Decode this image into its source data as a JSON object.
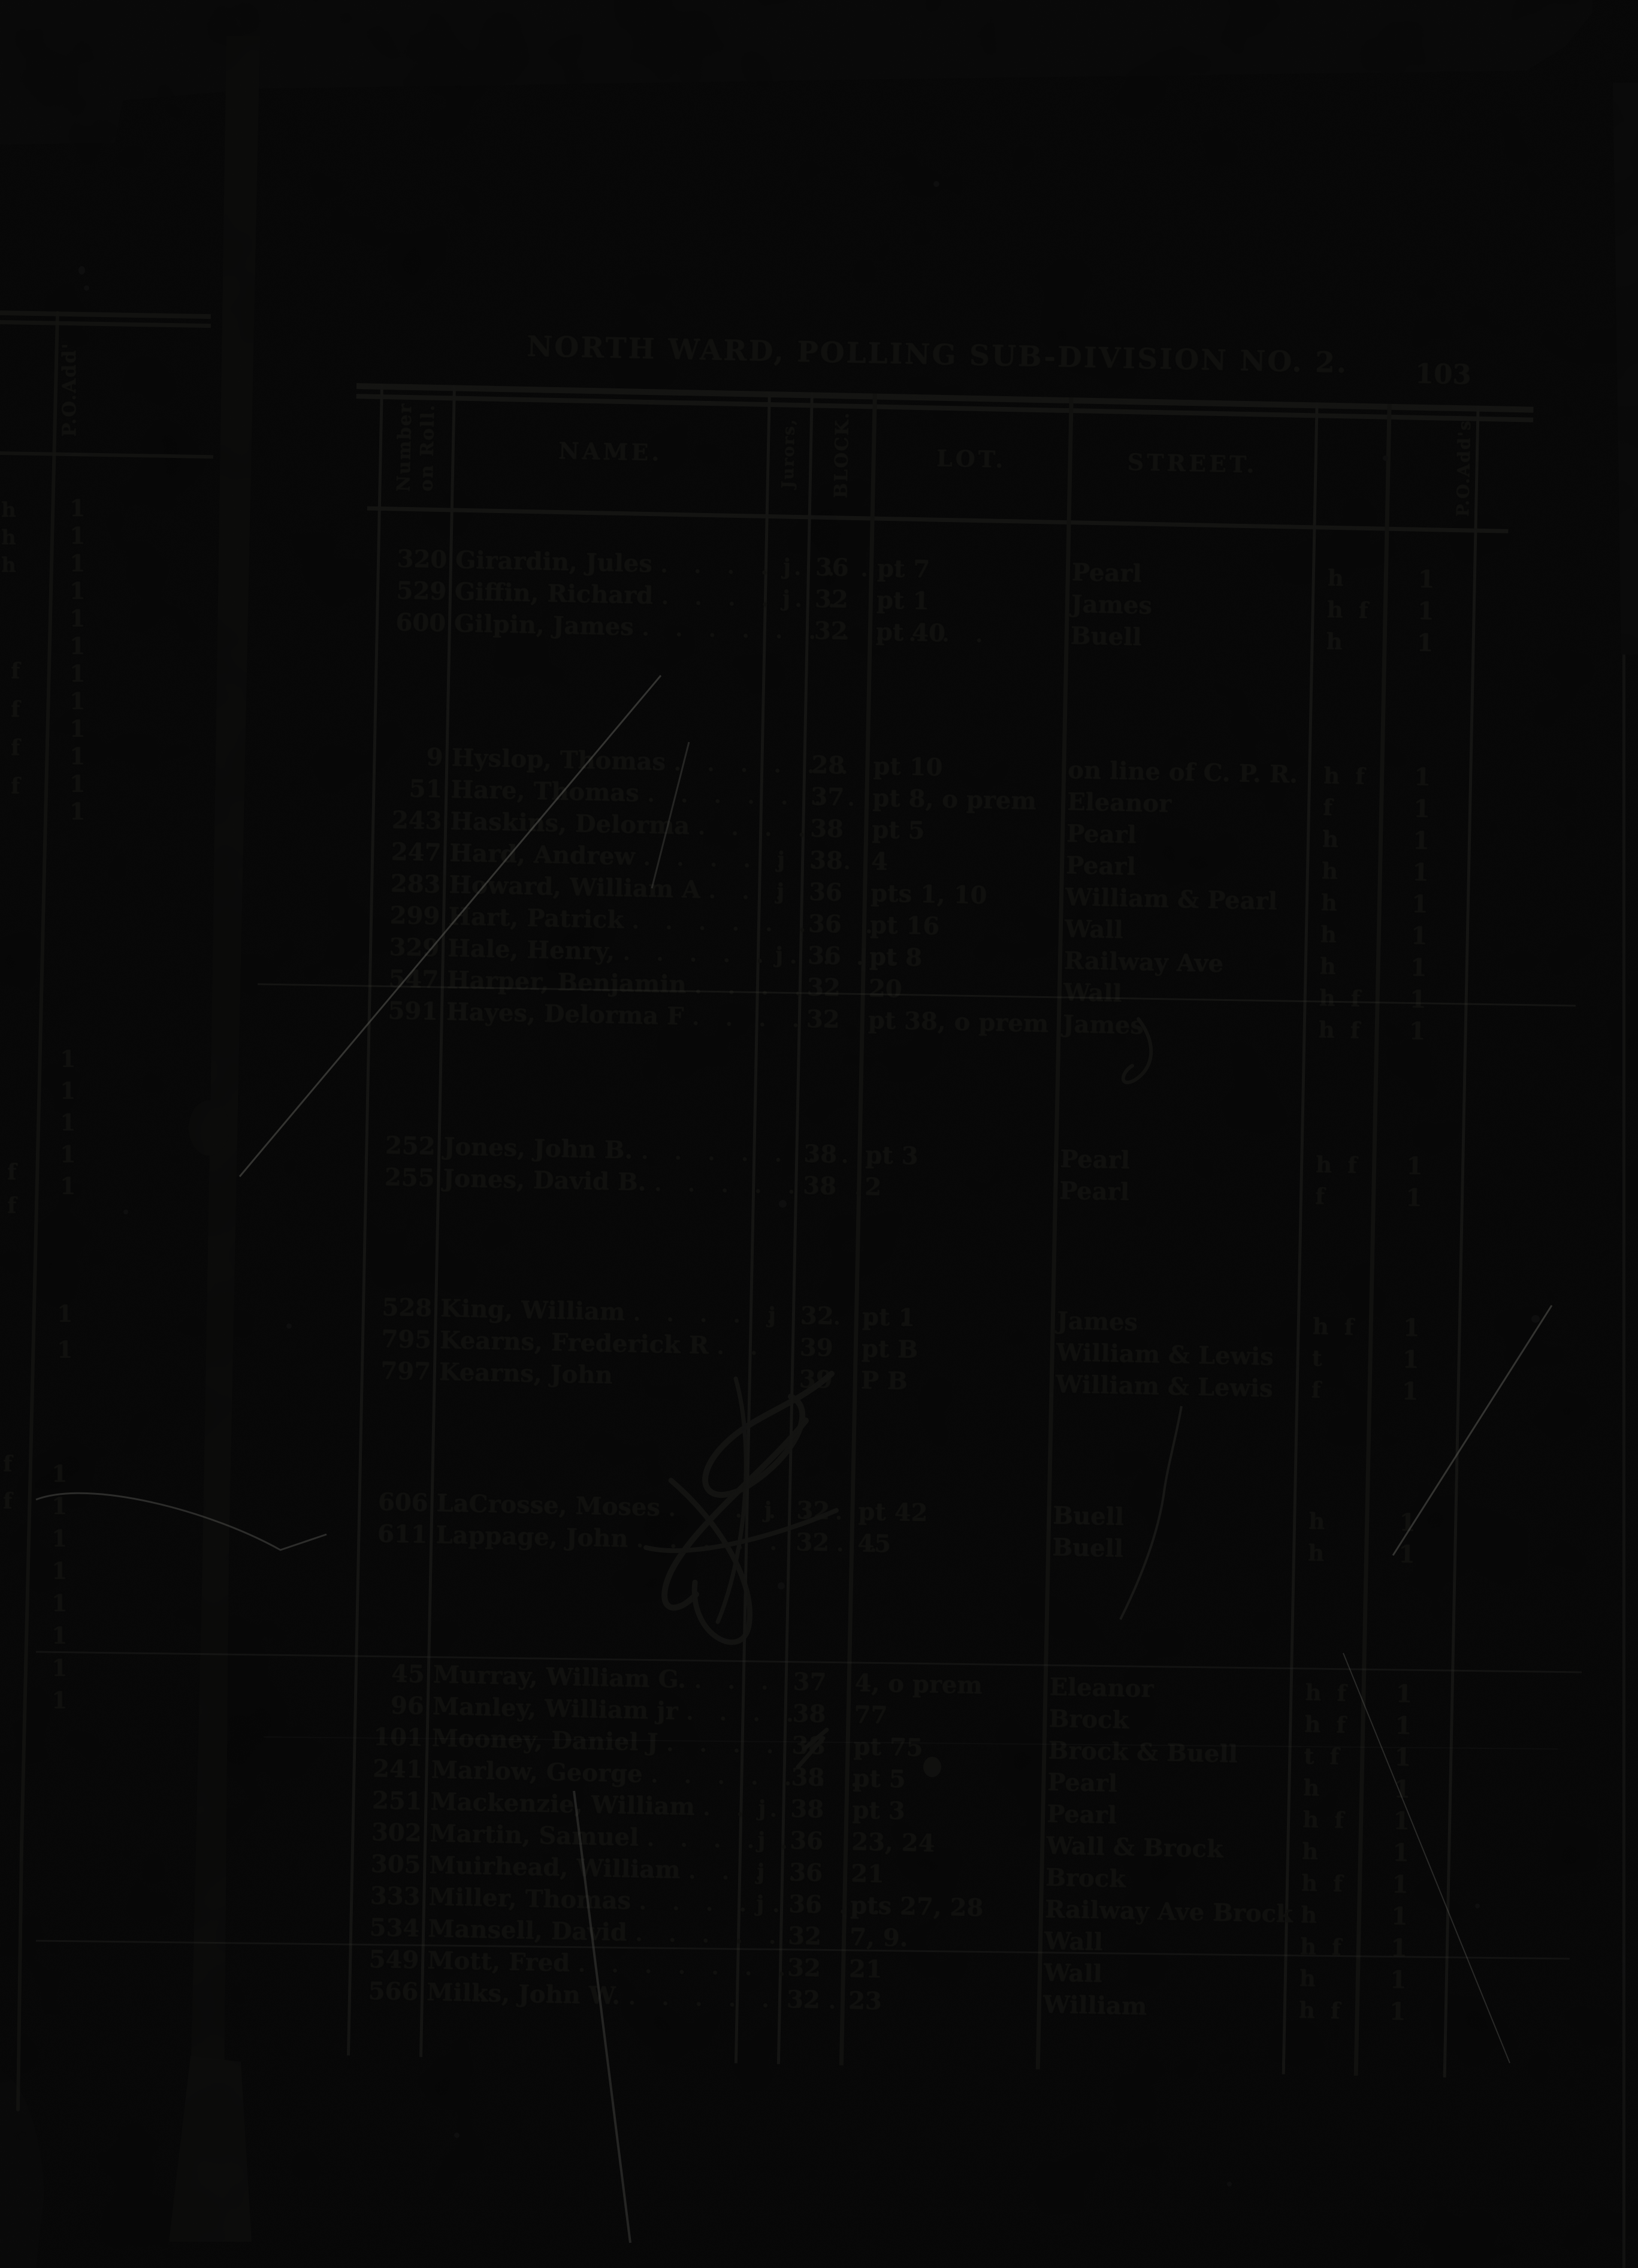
{
  "page": {
    "title": "NORTH WARD, POLLING SUB-DIVISION NO. 2.",
    "page_number": "103"
  },
  "table": {
    "headers": {
      "number_line1": "Number",
      "number_line2": "on Roll.",
      "name": "NAME.",
      "jurors": "Jurors,",
      "block": "BLOCK.",
      "lot": "LOT.",
      "street": "STREET.",
      "po_address": "P.O.Add's"
    },
    "groups": [
      {
        "rows": [
          {
            "number": "320",
            "name": "Girardin, Jules",
            "dots": ". . . . . . . .",
            "juror": "j",
            "block": "36",
            "lot": "pt 7",
            "street": "Pearl",
            "tenure": "h",
            "po": "1"
          },
          {
            "number": "529",
            "name": "Giffin, Richard",
            "dots": ". . . . . .",
            "juror": "j",
            "block": "32",
            "lot": "pt 1",
            "street": "James",
            "tenure": "h f",
            "po": "1"
          },
          {
            "number": "600",
            "name": "Gilpin, James",
            "dots": ". . . . . . . . . . .",
            "juror": "",
            "block": "32",
            "lot": "pt 40",
            "street": "Buell",
            "tenure": "h",
            "po": "1"
          }
        ]
      },
      {
        "rows": [
          {
            "number": "9",
            "name": "Hyslop, Thomas",
            "dots": ". . . . . .",
            "juror": "",
            "block": "28",
            "lot": "pt 10",
            "street": "on line of C. P. R.",
            "tenure": "h f",
            "po": "1"
          },
          {
            "number": "51",
            "name": "Hare, Thomas",
            "dots": ". . . . . . . .",
            "juror": "",
            "block": "37",
            "lot": "pt 8, o prem",
            "street": "Eleanor",
            "tenure": "f",
            "po": "1"
          },
          {
            "number": "243",
            "name": "Haskins, Delorma",
            "dots": ". . . .",
            "juror": "",
            "block": "38",
            "lot": "pt 5",
            "street": "Pearl",
            "tenure": "h",
            "po": "1"
          },
          {
            "number": "247",
            "name": "Hard, Andrew",
            "dots": ". . . . . . .",
            "juror": "j",
            "block": "38",
            "lot": "4",
            "street": "Pearl",
            "tenure": "h",
            "po": "1"
          },
          {
            "number": "283",
            "name": "Howard, William A",
            "dots": ". . .",
            "juror": "j",
            "block": "36",
            "lot": "pts 1, 10",
            "street": "William & Pearl",
            "tenure": "h",
            "po": "1"
          },
          {
            "number": "299",
            "name": "Hart, Patrick",
            "dots": ". . . . . . . .",
            "juror": "",
            "block": "36",
            "lot": "pt 16",
            "street": "Wall",
            "tenure": "h",
            "po": "1"
          },
          {
            "number": "329",
            "name": "Hale, Henry,",
            "dots": ". . . . . . . . .",
            "juror": "j",
            "block": "36",
            "lot": "pt 8",
            "street": "Railway Ave",
            "tenure": "h",
            "po": "1"
          },
          {
            "number": "547",
            "name": "Harper, Benjamin",
            "dots": ". . . .",
            "juror": "",
            "block": "32",
            "lot": "20",
            "street": "Wall",
            "tenure": "h f",
            "po": "1"
          },
          {
            "number": "591",
            "name": "Hayes, Delorma F",
            "dots": ". . . . .",
            "juror": "",
            "block": "32",
            "lot": "pt 38, o prem",
            "street": "James",
            "tenure": "h f",
            "po": "1"
          }
        ]
      },
      {
        "rows": [
          {
            "number": "252",
            "name": "Jones, John B.",
            "dots": ". . . . . . . .",
            "juror": "",
            "block": "38",
            "lot": "pt 3",
            "street": "Pearl",
            "tenure": "h f",
            "po": "1"
          },
          {
            "number": "255",
            "name": "Jones, David B.",
            "dots": ". . . . . . .",
            "juror": "",
            "block": "38",
            "lot": "2",
            "street": "Pearl",
            "tenure": "f",
            "po": "1"
          }
        ]
      },
      {
        "rows": [
          {
            "number": "528",
            "name": "King, William",
            "dots": ". . . . . . . . .",
            "juror": "j",
            "block": "32",
            "lot": "pt 1",
            "street": "James",
            "tenure": "h f",
            "po": "1"
          },
          {
            "number": "795",
            "name": "Kearns, Frederick R",
            "dots": ". .",
            "juror": "",
            "block": "39",
            "lot": "pt B",
            "street": "William & Lewis",
            "tenure": "t",
            "po": "1"
          },
          {
            "number": "797",
            "name": "Kearns, John",
            "dots": "",
            "juror": "",
            "block": "39",
            "lot": "P B",
            "street": "William & Lewis",
            "tenure": "f",
            "po": "1"
          }
        ]
      },
      {
        "rows": [
          {
            "number": "606",
            "name": "LaCrosse, Moses",
            "dots": ". . . . . .",
            "juror": "j",
            "block": "32",
            "lot": "pt 42",
            "street": "Buell",
            "tenure": "h",
            "po": "1"
          },
          {
            "number": "611",
            "name": "Lappage, John",
            "dots": ". . . . . . . .",
            "juror": "",
            "block": "32",
            "lot": "45",
            "street": "Buell",
            "tenure": "h",
            "po": "1"
          }
        ]
      },
      {
        "rows": [
          {
            "number": "45",
            "name": "Murray, William G.",
            "dots": ". . .",
            "juror": "",
            "block": "37",
            "lot": "4, o prem",
            "street": "Eleanor",
            "tenure": "h f",
            "po": "1"
          },
          {
            "number": "96",
            "name": "Manley, William jr",
            "dots": ". . . .",
            "juror": "",
            "block": "38",
            "lot": "77",
            "street": "Brock",
            "tenure": "h f",
            "po": "1"
          },
          {
            "number": "101",
            "name": "Mooney, Daniel J",
            "dots": ". . . . .",
            "juror": "",
            "block": "38",
            "lot": "pt 75",
            "street": "Brock & Buell",
            "tenure": "t f",
            "po": "1"
          },
          {
            "number": "241",
            "name": "Marlow, George",
            "dots": ". . . . . . .",
            "juror": "",
            "block": "38",
            "lot": "pt 5",
            "street": "Pearl",
            "tenure": "h",
            "po": "1"
          },
          {
            "number": "251",
            "name": "Mackenzie, William",
            "dots": ". . .",
            "juror": "j",
            "block": "38",
            "lot": "pt 3",
            "street": "Pearl",
            "tenure": "h f",
            "po": "1"
          },
          {
            "number": "302",
            "name": "Martin, Samuel",
            "dots": ". . . . . .",
            "juror": "j",
            "block": "36",
            "lot": "23, 24",
            "street": "Wall & Brock",
            "tenure": "h",
            "po": "1"
          },
          {
            "number": "305",
            "name": "Muirhead, William",
            "dots": ". . . .",
            "juror": "j",
            "block": "36",
            "lot": "21",
            "street": "Brock",
            "tenure": "h f",
            "po": "1"
          },
          {
            "number": "333",
            "name": "Miller, Thomas",
            "dots": ". . . . . . . . .",
            "juror": "j",
            "block": "36",
            "lot": "pts 27, 28",
            "street": "Railway Ave Brock",
            "tenure": "h",
            "po": "1"
          },
          {
            "number": "534",
            "name": "Mansell, David",
            "dots": ". . . . .",
            "juror": "",
            "block": "32",
            "lot": "7, 9.",
            "street": "Wall",
            "tenure": "h f",
            "po": "1"
          },
          {
            "number": "549",
            "name": "Mott, Fred",
            "dots": ". . . . . . . .",
            "juror": "",
            "block": "32",
            "lot": "21",
            "street": "Wall",
            "tenure": "h",
            "po": "1"
          },
          {
            "number": "566",
            "name": "Milks, John W.",
            "dots": ". . . . . . .",
            "juror": "",
            "block": "32",
            "lot": "23",
            "street": "William",
            "tenure": "h f",
            "po": "1"
          }
        ]
      }
    ]
  },
  "left_page_fragment": {
    "po_header": "P.O.Add'",
    "ones_a": [
      "1",
      "1",
      "1",
      "1",
      "1",
      "1",
      "1",
      "1",
      "1",
      "1",
      "1",
      "1"
    ],
    "marks_top": [
      "h",
      "h",
      "h"
    ],
    "marks_a": [
      "f",
      "f",
      "f",
      "f"
    ],
    "ones_b": [
      "1",
      "1",
      "1",
      "1",
      "1"
    ],
    "marks_b": [
      "f",
      "f"
    ],
    "ones_c": [
      "1",
      "1"
    ],
    "marks_c": [
      "f",
      "f"
    ],
    "ones_d": [
      "1",
      "1",
      "1",
      "1",
      "1",
      "1",
      "1",
      "1"
    ]
  }
}
